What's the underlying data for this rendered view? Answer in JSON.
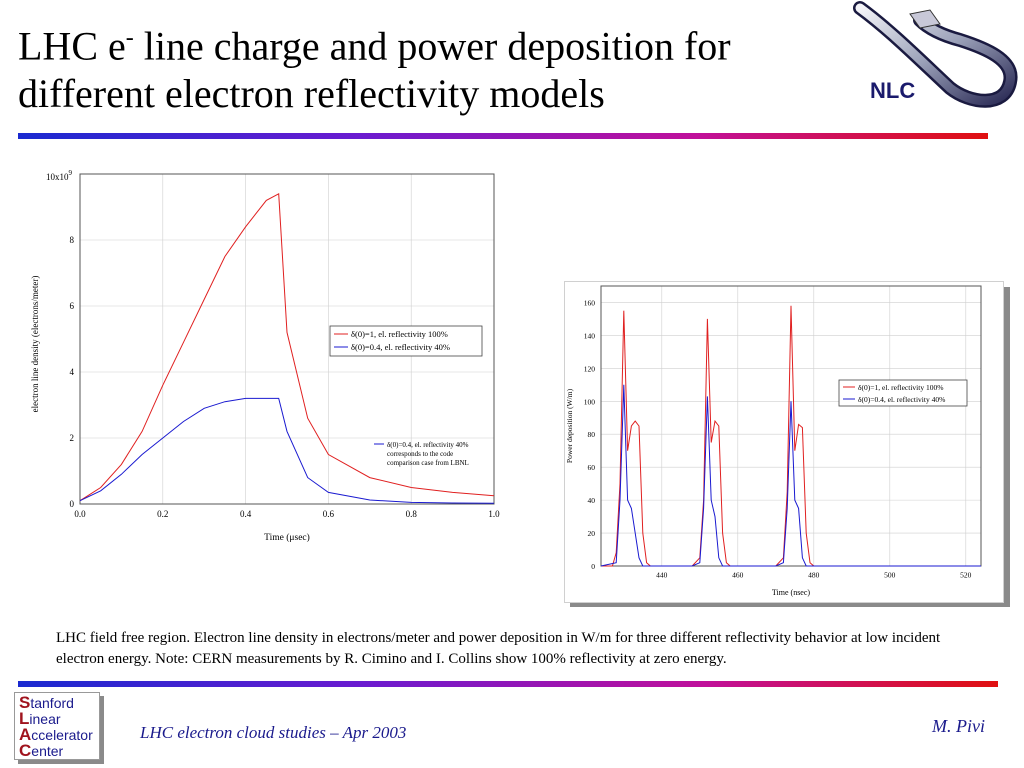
{
  "slide": {
    "title_line1_a": "LHC e",
    "title_sup": "-",
    "title_line1_b": " line charge and power deposition for",
    "title_line2": "different electron reflectivity models",
    "caption": "LHC field free region. Electron line density in electrons/meter and power deposition in W/m for three different reflectivity behavior at low incident electron energy. Note: CERN measurements by R. Cimino and I. Collins show 100% reflectivity at zero energy.",
    "footer_left": "LHC electron cloud studies – Apr 2003",
    "footer_right": "M. Pivi",
    "nlc_logo_text": "NLC",
    "slac_logo": [
      {
        "cap": "S",
        "rest": "tanford"
      },
      {
        "cap": "L",
        "rest": "inear"
      },
      {
        "cap": "A",
        "rest": "ccelerator"
      },
      {
        "cap": "C",
        "rest": "enter"
      }
    ],
    "colors": {
      "red": "#e02020",
      "blue": "#1a1ad0",
      "footer": "#1a1a8c"
    }
  },
  "chart_data": [
    {
      "type": "line",
      "xlabel": "Time (μsec)",
      "ylabel": "electron line density (electrons/meter)",
      "y_multiplier": "10x10^9",
      "xlim": [
        0,
        1.0
      ],
      "ylim": [
        0,
        10
      ],
      "x_ticks": [
        0.0,
        0.2,
        0.4,
        0.6,
        0.8,
        1.0
      ],
      "x_tick_labels": [
        "0.0",
        "0.2",
        "0.4",
        "0.6",
        "0.8",
        "1.0"
      ],
      "y_ticks": [
        0,
        2,
        4,
        6,
        8
      ],
      "y_tick_labels": [
        "0",
        "2",
        "4",
        "6",
        "8"
      ],
      "y_top_label": "10x10",
      "y_top_exp": "9",
      "grid": true,
      "legend_position": "right-middle",
      "series": [
        {
          "name": "δ(0)=1, el. reflectivity 100%",
          "color": "#e02020",
          "x": [
            0.0,
            0.05,
            0.1,
            0.15,
            0.2,
            0.25,
            0.3,
            0.35,
            0.4,
            0.45,
            0.48,
            0.5,
            0.55,
            0.6,
            0.7,
            0.8,
            0.9,
            1.0
          ],
          "y": [
            0.1,
            0.5,
            1.2,
            2.2,
            3.6,
            4.9,
            6.2,
            7.5,
            8.4,
            9.2,
            9.4,
            5.2,
            2.6,
            1.5,
            0.8,
            0.5,
            0.35,
            0.25
          ]
        },
        {
          "name": "δ(0)=0.4, el. reflectivity 40%",
          "color": "#1a1ad0",
          "x": [
            0.0,
            0.05,
            0.1,
            0.15,
            0.2,
            0.25,
            0.3,
            0.35,
            0.4,
            0.45,
            0.48,
            0.5,
            0.55,
            0.6,
            0.7,
            0.8,
            0.9,
            1.0
          ],
          "y": [
            0.1,
            0.4,
            0.9,
            1.5,
            2.0,
            2.5,
            2.9,
            3.1,
            3.2,
            3.2,
            3.2,
            2.2,
            0.8,
            0.35,
            0.12,
            0.05,
            0.03,
            0.02
          ]
        }
      ],
      "annotation": {
        "marker_color": "#1a1ad0",
        "lines": [
          "δ(0)=0.4, el. reflectivity 40%",
          "corresponds to the code",
          "comparison case from LBNL"
        ]
      }
    },
    {
      "type": "line",
      "xlabel": "Time (nsec)",
      "ylabel": "Power deposition (W/m)",
      "xlim": [
        424,
        524
      ],
      "ylim": [
        0,
        170
      ],
      "x_ticks": [
        440,
        460,
        480,
        500,
        520
      ],
      "x_tick_labels": [
        "440",
        "460",
        "480",
        "500",
        "520"
      ],
      "y_ticks": [
        0,
        20,
        40,
        60,
        80,
        100,
        120,
        140,
        160
      ],
      "y_tick_labels": [
        "0",
        "20",
        "40",
        "60",
        "80",
        "100",
        "120",
        "140",
        "160"
      ],
      "grid": true,
      "legend_position": "top-right",
      "series": [
        {
          "name": "δ(0)=1, el. reflectivity 100%",
          "color": "#e02020",
          "x": [
            424,
            427,
            428,
            429,
            430,
            431,
            432,
            433,
            434,
            435,
            436,
            437,
            438,
            448,
            450,
            451,
            452,
            453,
            454,
            455,
            456,
            457,
            458,
            459,
            460,
            470,
            472,
            473,
            474,
            475,
            476,
            477,
            478,
            479,
            480,
            481,
            482,
            490,
            524
          ],
          "y": [
            0,
            0,
            8,
            50,
            155,
            70,
            85,
            88,
            85,
            20,
            2,
            0,
            0,
            0,
            5,
            40,
            150,
            75,
            88,
            85,
            20,
            2,
            0,
            0,
            0,
            0,
            5,
            45,
            158,
            70,
            86,
            84,
            20,
            2,
            0,
            0,
            0,
            0,
            0
          ]
        },
        {
          "name": "δ(0)=0.4, el. reflectivity 40%",
          "color": "#1a1ad0",
          "x": [
            424,
            428,
            429,
            430,
            431,
            432,
            433,
            434,
            435,
            436,
            448,
            450,
            451,
            452,
            453,
            454,
            455,
            456,
            470,
            472,
            473,
            474,
            475,
            476,
            477,
            478,
            524
          ],
          "y": [
            0,
            2,
            40,
            110,
            40,
            35,
            20,
            5,
            0,
            0,
            0,
            2,
            35,
            103,
            40,
            30,
            5,
            0,
            0,
            2,
            35,
            100,
            40,
            35,
            5,
            0,
            0
          ]
        }
      ]
    }
  ]
}
